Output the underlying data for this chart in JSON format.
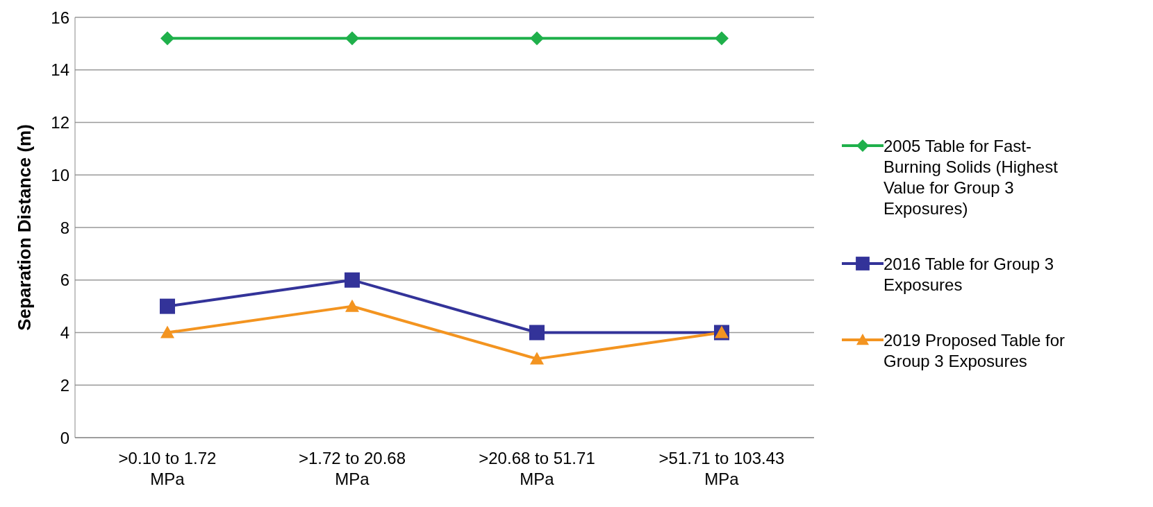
{
  "chart_data": {
    "type": "line",
    "ylabel": "Separation Distance (m)",
    "categories": [
      ">0.10 to 1.72 MPa",
      ">1.72 to 20.68 MPa",
      ">20.68 to 51.71 MPa",
      ">51.71 to 103.43 MPa"
    ],
    "series": [
      {
        "name": "2005 Table for Fast-Burning Solids (Highest Value for Group 3 Exposures)",
        "color": "#1fb04b",
        "marker": "diamond",
        "values": [
          15.2,
          15.2,
          15.2,
          15.2
        ]
      },
      {
        "name": "2016 Table for Group 3 Exposures",
        "color": "#333399",
        "marker": "square",
        "values": [
          5,
          6,
          4,
          4
        ]
      },
      {
        "name": "2019 Proposed Table for Group 3 Exposures",
        "color": "#f39420",
        "marker": "triangle",
        "values": [
          4,
          5,
          3,
          4
        ]
      }
    ],
    "ylim": [
      0,
      16
    ],
    "yticks": [
      0,
      2,
      4,
      6,
      8,
      10,
      12,
      14,
      16
    ],
    "grid": "y",
    "legend": "right",
    "line_style": "solid"
  }
}
